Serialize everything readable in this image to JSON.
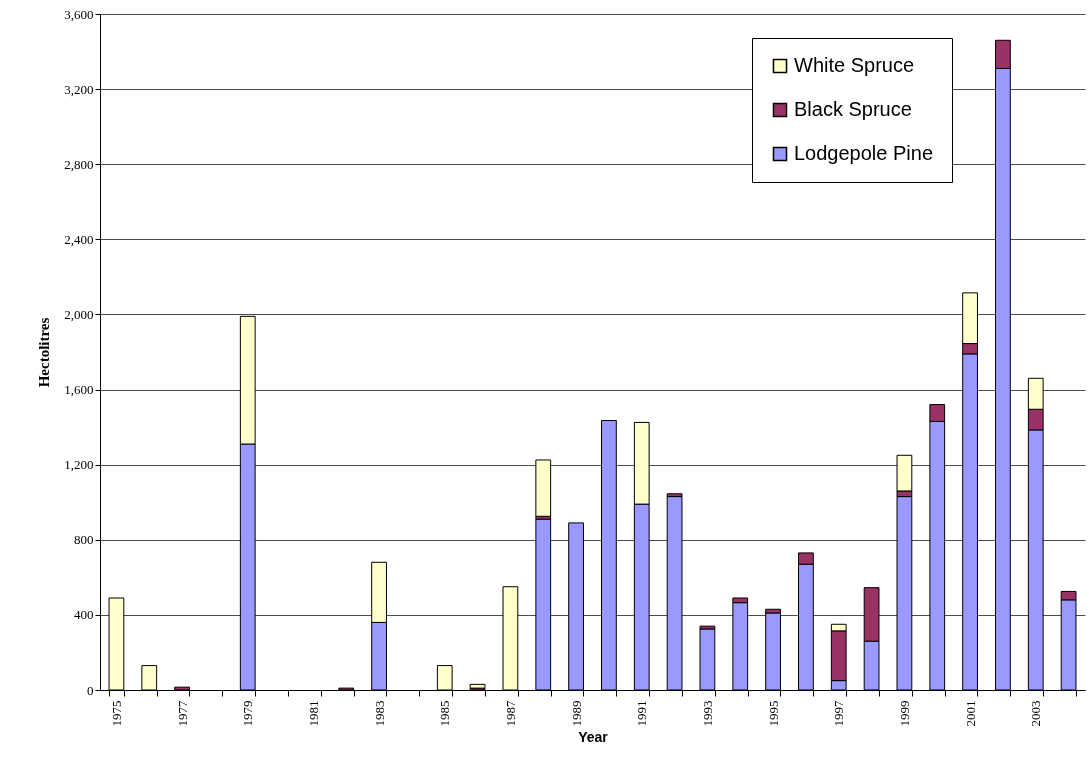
{
  "chart_data": {
    "type": "bar",
    "stacked": true,
    "xlabel": "Year",
    "ylabel": "Hectolitres",
    "categories": [
      "1975",
      null,
      "1977",
      null,
      "1979",
      null,
      "1981",
      null,
      "1983",
      null,
      "1985",
      null,
      "1987",
      null,
      "1989",
      null,
      "1991",
      null,
      "1993",
      null,
      "1995",
      null,
      "1997",
      null,
      "1999",
      null,
      "2001",
      null,
      "2003",
      null
    ],
    "series": [
      {
        "name": "Lodgepole Pine",
        "color": "#9999ff",
        "values": [
          null,
          null,
          null,
          null,
          1310,
          null,
          null,
          null,
          360,
          null,
          null,
          null,
          null,
          910,
          890,
          1435,
          990,
          1030,
          325,
          465,
          410,
          670,
          50,
          260,
          1030,
          1430,
          1790,
          3310,
          1385,
          480
        ]
      },
      {
        "name": "Black Spruce",
        "color": "#993366",
        "values": [
          null,
          null,
          15,
          null,
          null,
          null,
          null,
          10,
          null,
          null,
          null,
          10,
          null,
          15,
          null,
          null,
          null,
          15,
          15,
          25,
          20,
          60,
          265,
          285,
          30,
          90,
          55,
          150,
          110,
          45
        ]
      },
      {
        "name": "White Spruce",
        "color": "#ffffcc",
        "values": [
          490,
          130,
          null,
          null,
          680,
          null,
          null,
          null,
          320,
          null,
          130,
          20,
          550,
          300,
          null,
          null,
          435,
          null,
          null,
          null,
          null,
          null,
          35,
          null,
          190,
          null,
          270,
          null,
          165,
          null
        ]
      }
    ],
    "ylim": [
      0,
      3600
    ],
    "yticks": [
      0,
      {
        "value": 400,
        "label": "400"
      },
      {
        "value": 800,
        "label": "800"
      },
      {
        "value": 1200,
        "label": "1,200"
      },
      {
        "value": 1600,
        "label": "1,600"
      },
      {
        "value": 2000,
        "label": "2,000"
      },
      {
        "value": 2400,
        "label": "2,400"
      },
      {
        "value": 2800,
        "label": "2,800"
      },
      {
        "value": 3200,
        "label": "3,200"
      },
      {
        "value": 3600,
        "label": "3,600"
      }
    ],
    "grid": "y",
    "legend": "top right"
  }
}
